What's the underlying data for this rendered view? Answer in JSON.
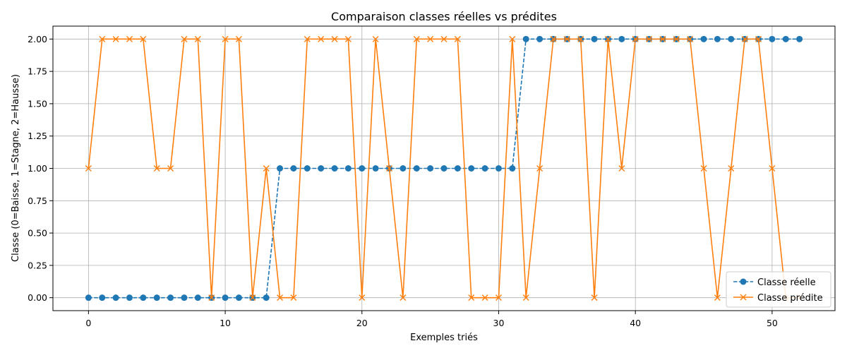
{
  "chart_data": {
    "type": "line",
    "title": "Comparaison classes réelles vs prédites",
    "xlabel": "Exemples triés",
    "ylabel": "Classe (0=Baisse, 1=Stagne, 2=Hausse)",
    "xlim": [
      -2.6,
      54.6
    ],
    "ylim": [
      -0.1,
      2.1
    ],
    "xticks": [
      0,
      10,
      20,
      30,
      40,
      50
    ],
    "yticks": [
      0.0,
      0.25,
      0.5,
      0.75,
      1.0,
      1.25,
      1.5,
      1.75,
      2.0
    ],
    "ytick_labels": [
      "0.00",
      "0.25",
      "0.50",
      "0.75",
      "1.00",
      "1.25",
      "1.50",
      "1.75",
      "2.00"
    ],
    "grid": true,
    "legend_position": "lower-right",
    "series": [
      {
        "name": "Classe réelle",
        "color": "#1f77b4",
        "line_style": "dashed",
        "marker": "circle",
        "values": [
          0,
          0,
          0,
          0,
          0,
          0,
          0,
          0,
          0,
          0,
          0,
          0,
          0,
          0,
          1,
          1,
          1,
          1,
          1,
          1,
          1,
          1,
          1,
          1,
          1,
          1,
          1,
          1,
          1,
          1,
          1,
          1,
          2,
          2,
          2,
          2,
          2,
          2,
          2,
          2,
          2,
          2,
          2,
          2,
          2,
          2,
          2,
          2,
          2,
          2,
          2,
          2,
          2
        ]
      },
      {
        "name": "Classe prédite",
        "color": "#ff7f0e",
        "line_style": "solid",
        "marker": "x",
        "values": [
          1,
          2,
          2,
          2,
          2,
          1,
          1,
          2,
          2,
          0,
          2,
          2,
          0,
          1,
          0,
          0,
          2,
          2,
          2,
          2,
          0,
          2,
          1,
          0,
          2,
          2,
          2,
          2,
          0,
          0,
          0,
          2,
          0,
          1,
          2,
          2,
          2,
          0,
          2,
          1,
          2,
          2,
          2,
          2,
          2,
          1,
          0,
          1,
          2,
          2,
          1,
          0,
          0
        ]
      }
    ]
  }
}
